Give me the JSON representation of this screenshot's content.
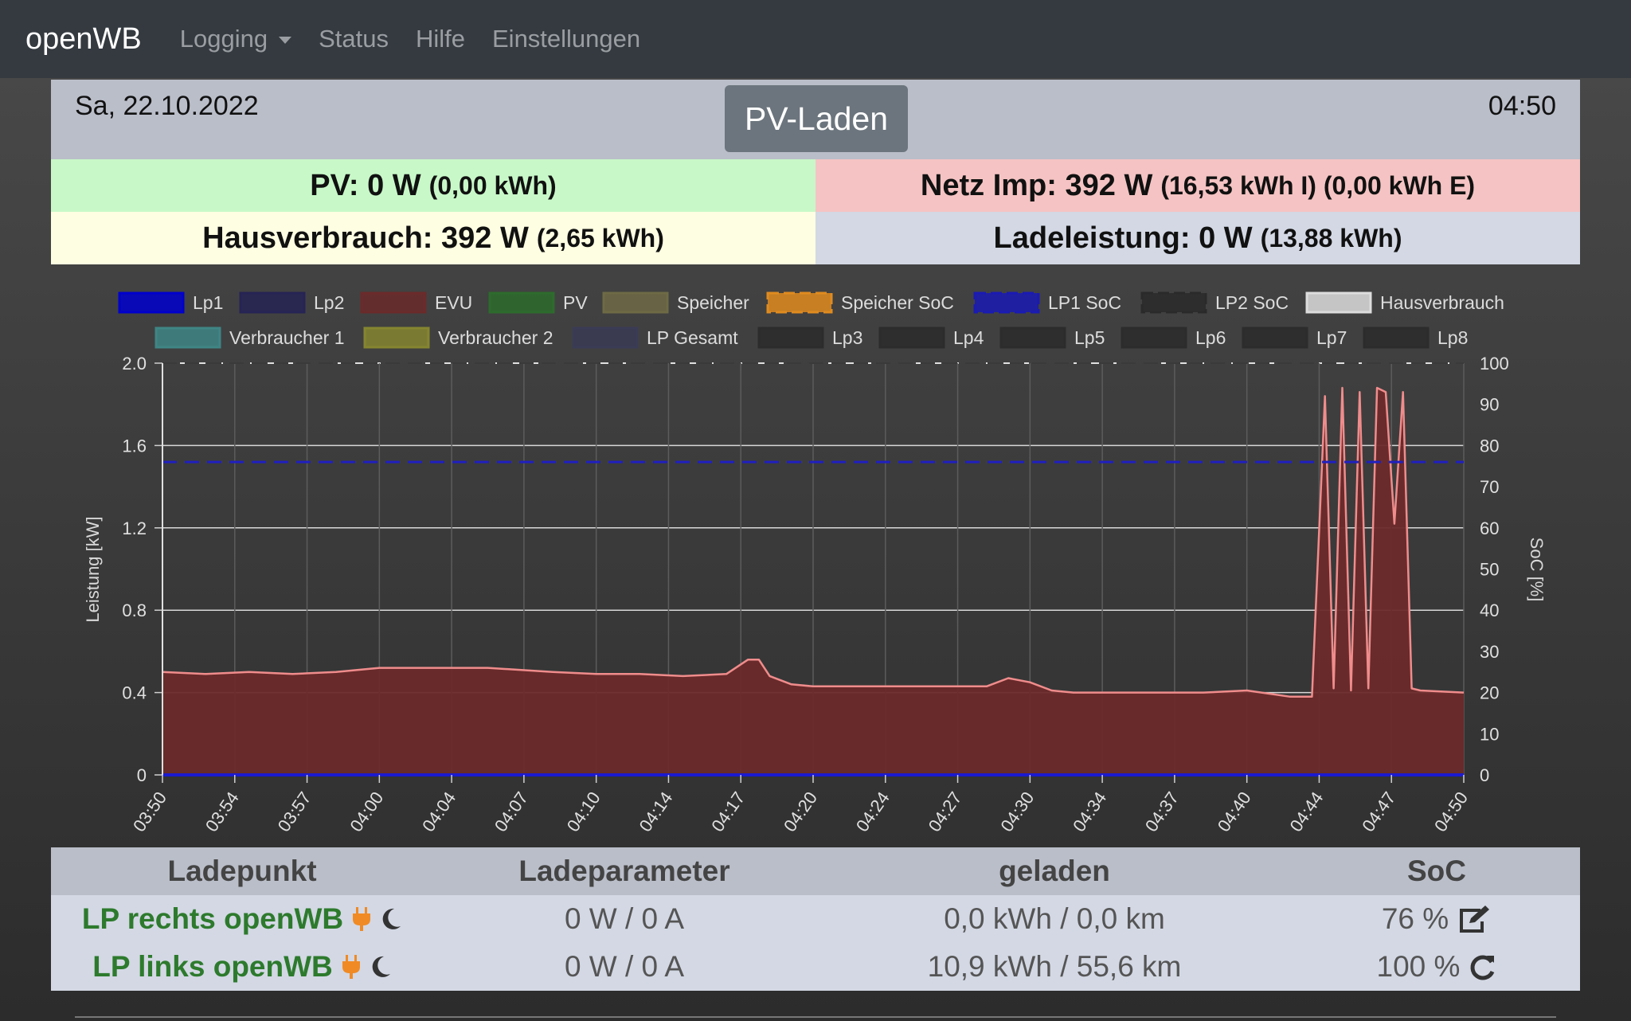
{
  "navbar": {
    "brand": "openWB",
    "items": [
      {
        "label": "Logging",
        "dropdown": true
      },
      {
        "label": "Status"
      },
      {
        "label": "Hilfe"
      },
      {
        "label": "Einstellungen"
      }
    ]
  },
  "header": {
    "date": "Sa, 22.10.2022",
    "time": "04:50",
    "mode": "PV-Laden"
  },
  "summary": {
    "pv_label": "PV: 0 W",
    "pv_energy": "(0,00 kWh)",
    "netz_label": "Netz Imp: 392 W",
    "netz_energy": "(16,53 kWh I) (0,00 kWh E)",
    "haus_label": "Hausverbrauch: 392 W",
    "haus_energy": "(2,65 kWh)",
    "lade_label": "Ladeleistung: 0 W",
    "lade_energy": "(13,88 kWh)"
  },
  "chart_data": {
    "type": "area",
    "ylabel": "Leistung [kW]",
    "y2label": "SoC [%]",
    "ylim": [
      0,
      2.0
    ],
    "y2lim": [
      0,
      100
    ],
    "y_ticks": [
      "0",
      "0.4",
      "0.8",
      "1.2",
      "1.6",
      "2.0"
    ],
    "y2_ticks": [
      "0",
      "10",
      "20",
      "30",
      "40",
      "50",
      "60",
      "70",
      "80",
      "90",
      "100"
    ],
    "x_ticks": [
      "03:50",
      "03:54",
      "03:57",
      "04:00",
      "04:04",
      "04:07",
      "04:10",
      "04:14",
      "04:17",
      "04:20",
      "04:24",
      "04:27",
      "04:30",
      "04:34",
      "04:37",
      "04:40",
      "04:44",
      "04:47",
      "04:50"
    ],
    "grid": true,
    "legend_position": "top",
    "legend": [
      {
        "name": "Lp1",
        "color": "#0000cc",
        "dashed": false
      },
      {
        "name": "Lp2",
        "color": "#262454",
        "dashed": false
      },
      {
        "name": "EVU",
        "color": "#6b2a2a",
        "dashed": false
      },
      {
        "name": "PV",
        "color": "#2d6b2d",
        "dashed": false
      },
      {
        "name": "Speicher",
        "color": "#6e6a45",
        "dashed": false
      },
      {
        "name": "Speicher SoC",
        "color": "#e08b1f",
        "dashed": true
      },
      {
        "name": "LP1 SoC",
        "color": "#1a1ab4",
        "dashed": true
      },
      {
        "name": "LP2 SoC",
        "color": "#2a2a2a",
        "dashed": true
      },
      {
        "name": "Hausverbrauch",
        "color": "#dddddd",
        "dashed": false
      },
      {
        "name": "Verbraucher 1",
        "color": "#3f8585",
        "dashed": false
      },
      {
        "name": "Verbraucher 2",
        "color": "#858530",
        "dashed": false
      },
      {
        "name": "LP Gesamt",
        "color": "#3a3b55",
        "dashed": false
      },
      {
        "name": "Lp3",
        "color": "#2c2c2c",
        "dashed": false
      },
      {
        "name": "Lp4",
        "color": "#2c2c2c",
        "dashed": false
      },
      {
        "name": "Lp5",
        "color": "#2c2c2c",
        "dashed": false
      },
      {
        "name": "Lp6",
        "color": "#2c2c2c",
        "dashed": false
      },
      {
        "name": "Lp7",
        "color": "#2c2c2c",
        "dashed": false
      },
      {
        "name": "Lp8",
        "color": "#2c2c2c",
        "dashed": false
      }
    ],
    "series": [
      {
        "name": "EVU",
        "axis": "kW",
        "x_minutes": [
          0,
          2,
          4,
          6,
          8,
          10,
          11,
          13,
          15,
          18,
          20,
          22,
          24,
          26,
          27,
          27.5,
          28,
          29,
          30,
          32,
          34,
          36,
          38,
          39,
          40,
          41,
          42,
          44,
          46,
          48,
          50,
          52,
          53,
          53.6,
          54,
          54.4,
          54.8,
          55.2,
          55.6,
          56,
          56.4,
          56.8,
          57.2,
          57.6,
          58,
          60
        ],
        "values": [
          0.5,
          0.49,
          0.5,
          0.49,
          0.5,
          0.52,
          0.52,
          0.52,
          0.52,
          0.5,
          0.49,
          0.49,
          0.48,
          0.49,
          0.56,
          0.56,
          0.48,
          0.44,
          0.43,
          0.43,
          0.43,
          0.43,
          0.43,
          0.47,
          0.45,
          0.41,
          0.4,
          0.4,
          0.4,
          0.4,
          0.41,
          0.38,
          0.38,
          1.84,
          0.42,
          1.88,
          0.41,
          1.86,
          0.42,
          1.88,
          1.86,
          1.22,
          1.86,
          0.42,
          0.41,
          0.4
        ]
      },
      {
        "name": "Lp1",
        "axis": "kW",
        "x_minutes": [
          0,
          60
        ],
        "values": [
          0,
          0
        ]
      },
      {
        "name": "LP1 SoC",
        "axis": "%",
        "x_minutes": [
          0,
          60
        ],
        "values": [
          76,
          76
        ]
      },
      {
        "name": "LP2 SoC",
        "axis": "%",
        "x_minutes": [
          0,
          60
        ],
        "values": [
          100,
          100
        ]
      }
    ]
  },
  "chargepoints": {
    "headers": [
      "Ladepunkt",
      "Ladeparameter",
      "geladen",
      "SoC"
    ],
    "rows": [
      {
        "name": "LP rechts openWB",
        "params": "0 W / 0 A",
        "charged": "0,0 kWh / 0,0 km",
        "soc": "76 %",
        "soc_icon": "edit-icon"
      },
      {
        "name": "LP links openWB",
        "params": "0 W / 0 A",
        "charged": "10,9 kWh / 55,6 km",
        "soc": "100 %",
        "soc_icon": "refresh-icon"
      }
    ]
  }
}
